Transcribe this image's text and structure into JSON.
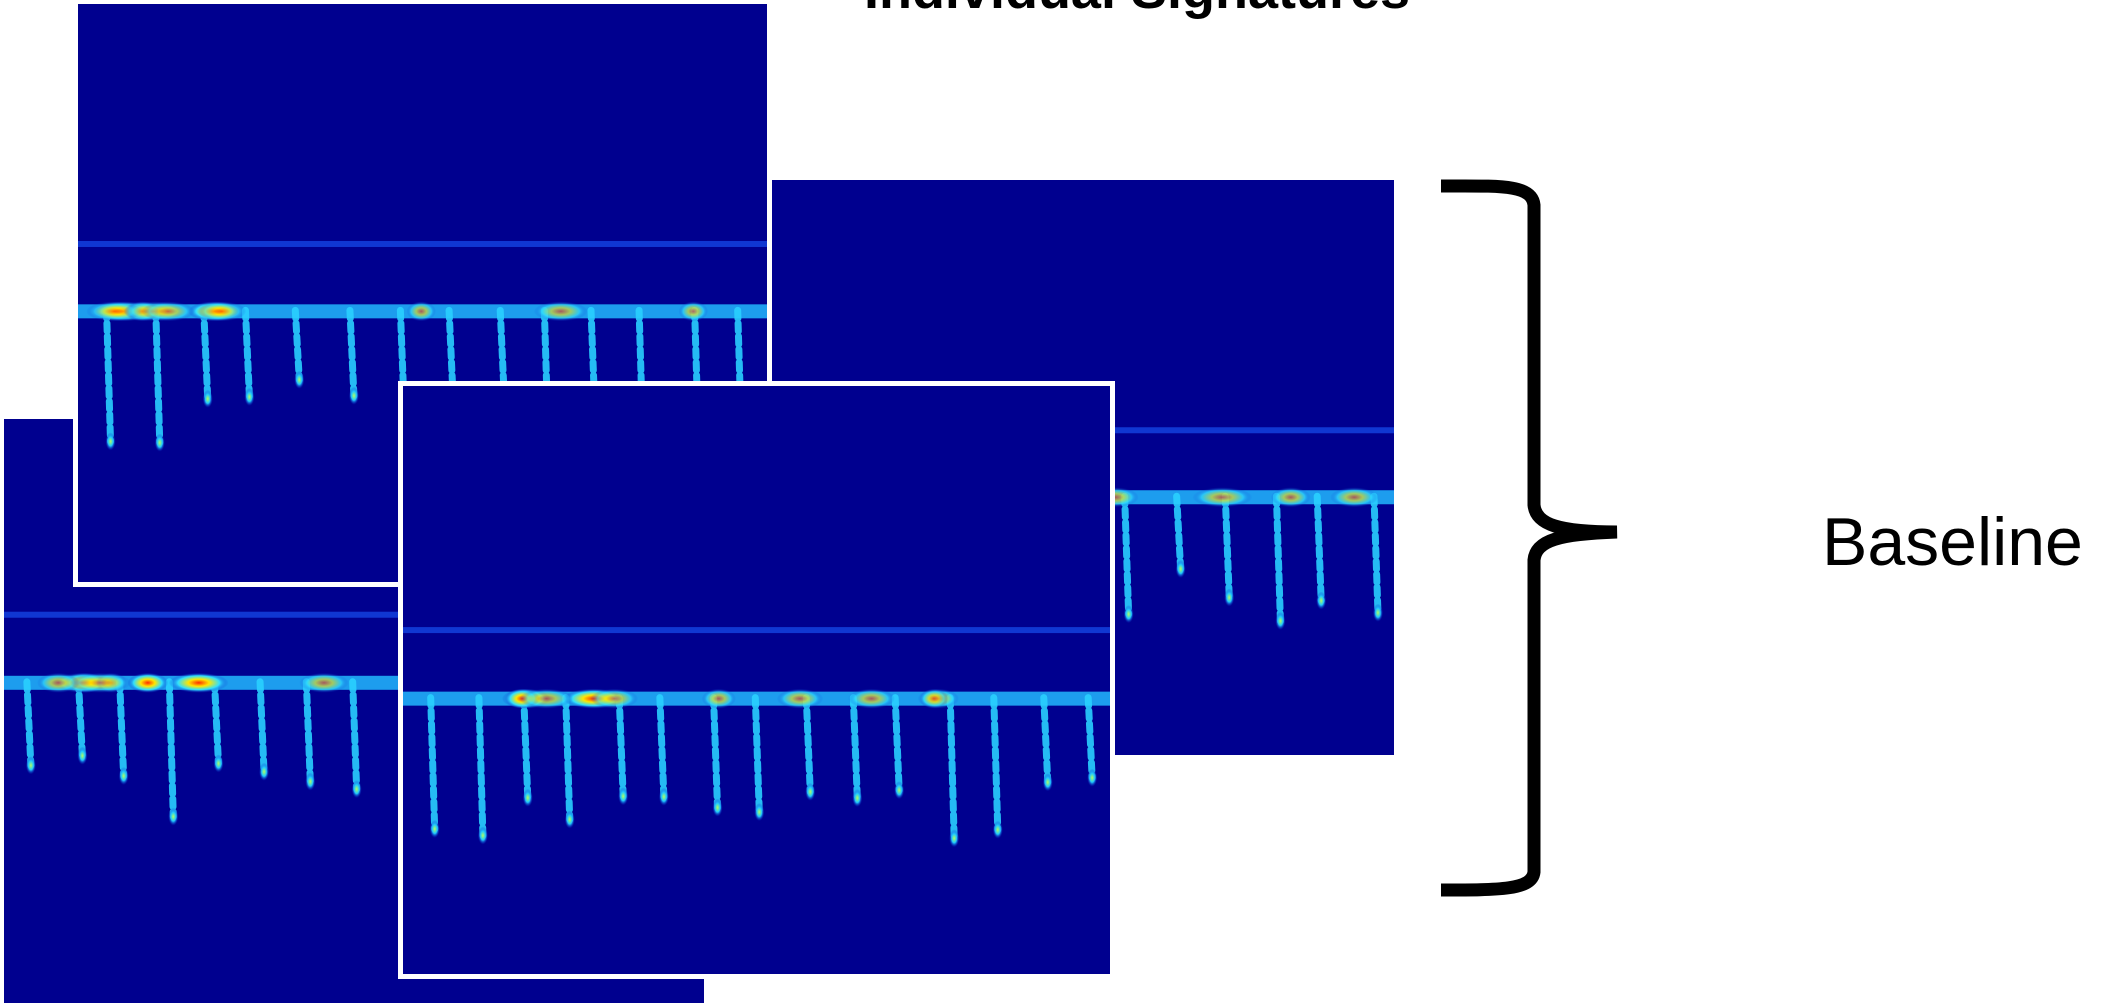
{
  "title": "Individual Signatures",
  "label": "Baseline"
}
